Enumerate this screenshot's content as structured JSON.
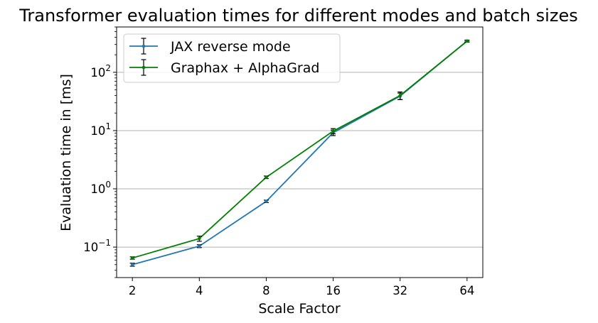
{
  "chart_data": {
    "type": "line",
    "title": "Transformer evaluation times for different modes and batch sizes",
    "xlabel": "Scale Factor",
    "ylabel": "Evaluation time in [ms]",
    "x_scale": "log2",
    "y_scale": "log10",
    "categories": [
      "2",
      "4",
      "8",
      "16",
      "32",
      "64"
    ],
    "x": [
      2,
      4,
      8,
      16,
      32,
      64
    ],
    "ylim": [
      0.03,
      600
    ],
    "y_ticks": [
      {
        "value": 0.1,
        "base": "10",
        "exp": "−1"
      },
      {
        "value": 1,
        "base": "10",
        "exp": "0"
      },
      {
        "value": 10,
        "base": "10",
        "exp": "1"
      },
      {
        "value": 100,
        "base": "10",
        "exp": "2"
      }
    ],
    "grid": "y-major",
    "legend_position": "upper-left",
    "series": [
      {
        "name": "JAX reverse mode",
        "color": "#1f77b4",
        "values": [
          0.05,
          0.104,
          0.61,
          9.2,
          39,
          345
        ],
        "error": [
          0.003,
          0.006,
          0.03,
          1.0,
          5,
          12
        ]
      },
      {
        "name": "Graphax + AlphaGrad",
        "color": "#008000",
        "values": [
          0.065,
          0.14,
          1.58,
          9.8,
          40,
          342
        ],
        "error": [
          0.003,
          0.014,
          0.08,
          1.0,
          6,
          12
        ]
      }
    ]
  }
}
